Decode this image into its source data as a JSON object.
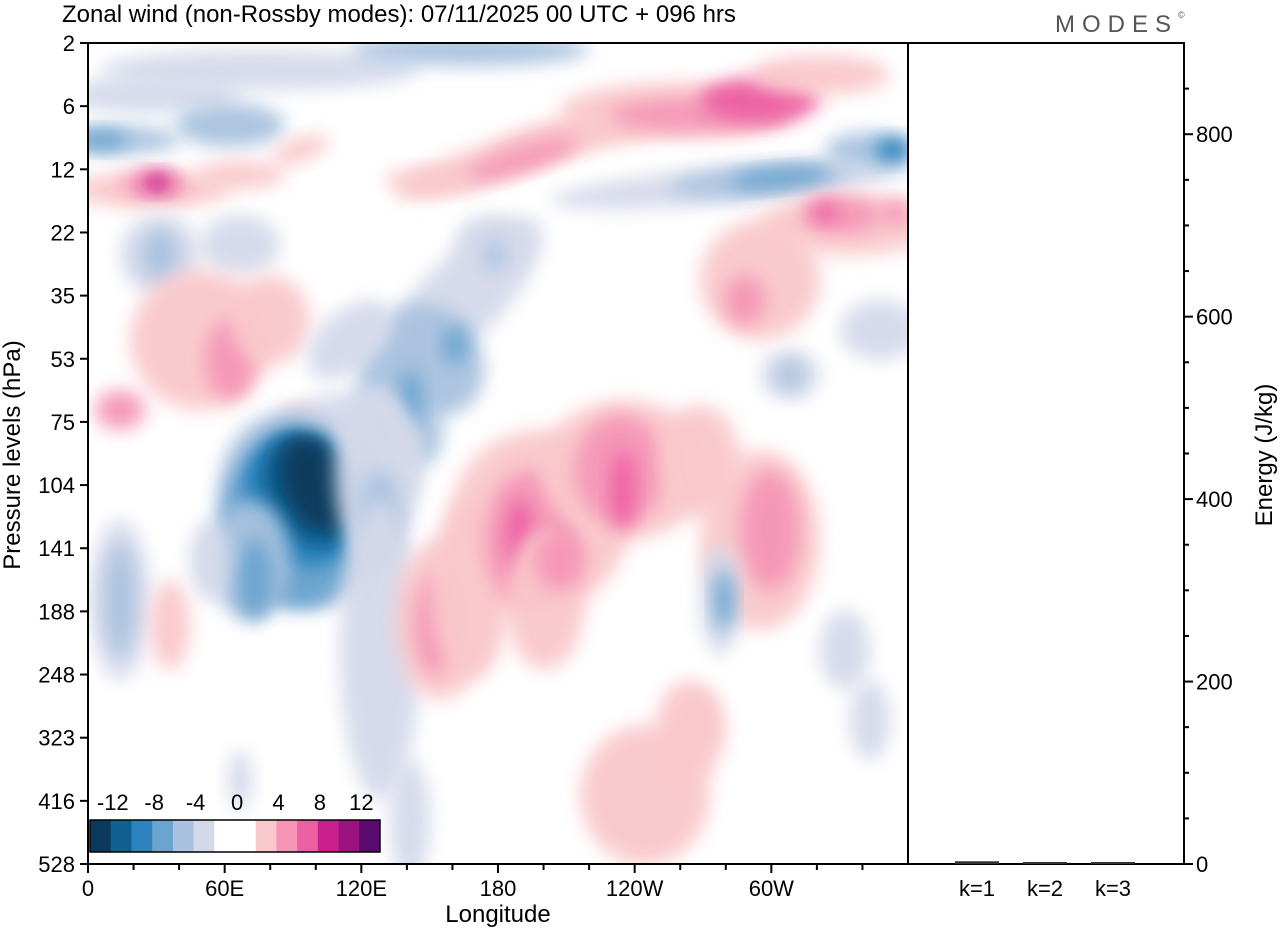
{
  "title": "Zonal wind (non-Rossby modes):  07/11/2025  00 UTC  + 096 hrs",
  "brand": {
    "label": "MODES",
    "mark": "©"
  },
  "chart_data": [
    {
      "type": "heatmap",
      "title": "Zonal wind (non-Rossby modes):  07/11/2025  00 UTC  + 096 hrs",
      "xlabel": "Longitude",
      "ylabel": "Pressure levels (hPa)",
      "x_ticks": [
        "0",
        "60E",
        "120E",
        "180",
        "120W",
        "60W"
      ],
      "y_ticks": [
        "2",
        "6",
        "12",
        "22",
        "35",
        "53",
        "75",
        "104",
        "141",
        "188",
        "248",
        "323",
        "416",
        "528"
      ],
      "colorbar": {
        "labels": [
          "-12",
          "-8",
          "-4",
          "0",
          "4",
          "8",
          "12"
        ],
        "colors": [
          "#0c3a5c",
          "#0f5f91",
          "#2c83bd",
          "#6aa4cf",
          "#a9c2df",
          "#d4d9ea",
          "#ffffff",
          "#ffffff",
          "#f9c8cb",
          "#f596b7",
          "#ec5fa3",
          "#c91f8c",
          "#9a137f",
          "#5a0a6e"
        ]
      },
      "features": [
        {
          "name": "negative-core-104hPa",
          "lon": 100,
          "level": "104",
          "value": -14
        },
        {
          "name": "jet-12hPa-positive",
          "lon": 30,
          "level": "12",
          "value": 10
        },
        {
          "name": "jet-12hPa-negative",
          "lon": 290,
          "level": "12",
          "value": -10
        },
        {
          "name": "positive-band-141hPa",
          "lon": 195,
          "level": "141",
          "value": 8
        },
        {
          "name": "positive-band-104hPa",
          "lon": 228,
          "level": "104",
          "value": 8
        }
      ]
    },
    {
      "type": "bar",
      "ylabel": "Energy (J/kg)",
      "categories": [
        "k=1",
        "k=2",
        "k=3"
      ],
      "values": [
        3,
        2,
        1
      ],
      "ylim": [
        0,
        900
      ],
      "y_ticks": [
        "0",
        "200",
        "400",
        "600",
        "800"
      ]
    }
  ]
}
